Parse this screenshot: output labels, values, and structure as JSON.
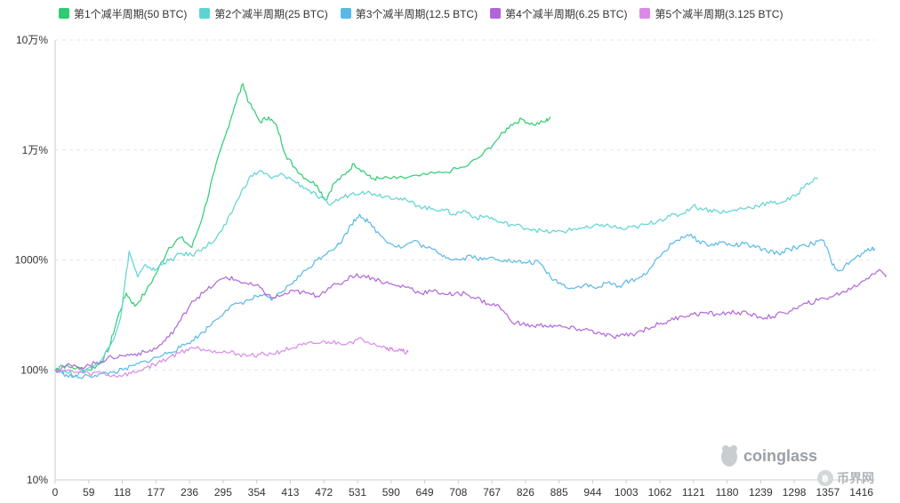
{
  "chart_data": {
    "type": "line",
    "y_scale": "log",
    "ylim": [
      10,
      100000
    ],
    "xlim": [
      0,
      1440
    ],
    "y_ticks": [
      {
        "value": 10,
        "label": "10%"
      },
      {
        "value": 100,
        "label": "100%"
      },
      {
        "value": 1000,
        "label": "1000%"
      },
      {
        "value": 10000,
        "label": "1万%"
      },
      {
        "value": 100000,
        "label": "10万%"
      }
    ],
    "x_ticks": [
      0,
      59,
      118,
      177,
      236,
      295,
      354,
      413,
      472,
      531,
      590,
      649,
      708,
      767,
      826,
      885,
      944,
      1003,
      1062,
      1121,
      1180,
      1239,
      1298,
      1357,
      1416
    ],
    "grid": true,
    "legend_position": "top",
    "series": [
      {
        "name": "第1个减半周期(50 BTC)",
        "color": "#2ecc71",
        "points": [
          [
            0,
            100
          ],
          [
            10,
            110
          ],
          [
            30,
            105
          ],
          [
            60,
            100
          ],
          [
            80,
            115
          ],
          [
            95,
            160
          ],
          [
            110,
            300
          ],
          [
            125,
            500
          ],
          [
            140,
            380
          ],
          [
            160,
            520
          ],
          [
            180,
            800
          ],
          [
            200,
            1300
          ],
          [
            220,
            1600
          ],
          [
            240,
            1300
          ],
          [
            260,
            2600
          ],
          [
            280,
            6500
          ],
          [
            300,
            14000
          ],
          [
            315,
            25000
          ],
          [
            330,
            40000
          ],
          [
            340,
            27000
          ],
          [
            360,
            18000
          ],
          [
            375,
            20000
          ],
          [
            390,
            16000
          ],
          [
            405,
            9000
          ],
          [
            420,
            7000
          ],
          [
            440,
            5500
          ],
          [
            460,
            4800
          ],
          [
            475,
            3500
          ],
          [
            490,
            5000
          ],
          [
            510,
            6000
          ],
          [
            525,
            7500
          ],
          [
            540,
            6500
          ],
          [
            555,
            5500
          ],
          [
            570,
            5500
          ],
          [
            600,
            5500
          ],
          [
            640,
            5800
          ],
          [
            680,
            6200
          ],
          [
            720,
            7000
          ],
          [
            750,
            9000
          ],
          [
            780,
            13000
          ],
          [
            800,
            17000
          ],
          [
            820,
            19000
          ],
          [
            840,
            17000
          ],
          [
            860,
            18000
          ],
          [
            870,
            20000
          ]
        ]
      },
      {
        "name": "第2个减半周期(25 BTC)",
        "color": "#5fd3d3",
        "points": [
          [
            0,
            100
          ],
          [
            20,
            95
          ],
          [
            40,
            90
          ],
          [
            60,
            105
          ],
          [
            80,
            120
          ],
          [
            100,
            180
          ],
          [
            115,
            300
          ],
          [
            130,
            1200
          ],
          [
            145,
            700
          ],
          [
            160,
            900
          ],
          [
            175,
            800
          ],
          [
            190,
            950
          ],
          [
            205,
            1000
          ],
          [
            220,
            1150
          ],
          [
            240,
            1100
          ],
          [
            260,
            1300
          ],
          [
            280,
            1500
          ],
          [
            300,
            2100
          ],
          [
            320,
            3500
          ],
          [
            340,
            5500
          ],
          [
            360,
            6500
          ],
          [
            380,
            5500
          ],
          [
            400,
            6000
          ],
          [
            420,
            5200
          ],
          [
            440,
            4500
          ],
          [
            460,
            3800
          ],
          [
            480,
            3200
          ],
          [
            500,
            3600
          ],
          [
            520,
            4000
          ],
          [
            540,
            4200
          ],
          [
            560,
            4000
          ],
          [
            580,
            3800
          ],
          [
            600,
            3700
          ],
          [
            620,
            3400
          ],
          [
            640,
            3100
          ],
          [
            660,
            2900
          ],
          [
            680,
            2900
          ],
          [
            700,
            2600
          ],
          [
            720,
            2800
          ],
          [
            740,
            2400
          ],
          [
            760,
            2500
          ],
          [
            780,
            2200
          ],
          [
            800,
            2100
          ],
          [
            820,
            2000
          ],
          [
            840,
            1900
          ],
          [
            860,
            1800
          ],
          [
            880,
            1800
          ],
          [
            900,
            1850
          ],
          [
            920,
            1950
          ],
          [
            940,
            1950
          ],
          [
            960,
            2100
          ],
          [
            980,
            2000
          ],
          [
            1000,
            1900
          ],
          [
            1020,
            2000
          ],
          [
            1040,
            2100
          ],
          [
            1060,
            2300
          ],
          [
            1080,
            2500
          ],
          [
            1100,
            2600
          ],
          [
            1120,
            3100
          ],
          [
            1140,
            2900
          ],
          [
            1160,
            2800
          ],
          [
            1180,
            2700
          ],
          [
            1200,
            2900
          ],
          [
            1220,
            3000
          ],
          [
            1240,
            3200
          ],
          [
            1260,
            3300
          ],
          [
            1280,
            3400
          ],
          [
            1300,
            3800
          ],
          [
            1320,
            5000
          ],
          [
            1340,
            5500
          ]
        ]
      },
      {
        "name": "第3个减半周期(12.5 BTC)",
        "color": "#5ab8e8",
        "points": [
          [
            0,
            100
          ],
          [
            20,
            90
          ],
          [
            40,
            85
          ],
          [
            60,
            88
          ],
          [
            80,
            92
          ],
          [
            100,
            95
          ],
          [
            120,
            100
          ],
          [
            140,
            110
          ],
          [
            160,
            120
          ],
          [
            180,
            130
          ],
          [
            200,
            145
          ],
          [
            220,
            160
          ],
          [
            240,
            185
          ],
          [
            260,
            220
          ],
          [
            280,
            280
          ],
          [
            300,
            350
          ],
          [
            320,
            400
          ],
          [
            340,
            430
          ],
          [
            360,
            480
          ],
          [
            380,
            430
          ],
          [
            400,
            520
          ],
          [
            420,
            650
          ],
          [
            440,
            800
          ],
          [
            460,
            1000
          ],
          [
            480,
            1200
          ],
          [
            500,
            1400
          ],
          [
            520,
            2100
          ],
          [
            535,
            2600
          ],
          [
            550,
            2200
          ],
          [
            570,
            1700
          ],
          [
            590,
            1400
          ],
          [
            610,
            1300
          ],
          [
            630,
            1500
          ],
          [
            650,
            1300
          ],
          [
            670,
            1200
          ],
          [
            690,
            1050
          ],
          [
            710,
            1000
          ],
          [
            730,
            1100
          ],
          [
            750,
            1000
          ],
          [
            770,
            1050
          ],
          [
            790,
            1000
          ],
          [
            810,
            950
          ],
          [
            830,
            950
          ],
          [
            850,
            950
          ],
          [
            870,
            700
          ],
          [
            890,
            600
          ],
          [
            910,
            550
          ],
          [
            930,
            600
          ],
          [
            950,
            550
          ],
          [
            970,
            620
          ],
          [
            990,
            580
          ],
          [
            1010,
            650
          ],
          [
            1030,
            700
          ],
          [
            1050,
            900
          ],
          [
            1070,
            1200
          ],
          [
            1090,
            1500
          ],
          [
            1110,
            1700
          ],
          [
            1130,
            1500
          ],
          [
            1150,
            1350
          ],
          [
            1170,
            1450
          ],
          [
            1190,
            1350
          ],
          [
            1210,
            1400
          ],
          [
            1230,
            1300
          ],
          [
            1250,
            1200
          ],
          [
            1270,
            1150
          ],
          [
            1290,
            1250
          ],
          [
            1310,
            1350
          ],
          [
            1330,
            1400
          ],
          [
            1350,
            1500
          ],
          [
            1365,
            900
          ],
          [
            1380,
            800
          ],
          [
            1400,
            1000
          ],
          [
            1420,
            1150
          ],
          [
            1435,
            1300
          ],
          [
            1440,
            1250
          ]
        ]
      },
      {
        "name": "第4个减半周期(6.25 BTC)",
        "color": "#b065d8",
        "points": [
          [
            0,
            100
          ],
          [
            20,
            110
          ],
          [
            40,
            105
          ],
          [
            60,
            110
          ],
          [
            80,
            120
          ],
          [
            100,
            130
          ],
          [
            120,
            135
          ],
          [
            140,
            140
          ],
          [
            160,
            145
          ],
          [
            180,
            160
          ],
          [
            200,
            200
          ],
          [
            220,
            280
          ],
          [
            240,
            420
          ],
          [
            260,
            500
          ],
          [
            280,
            600
          ],
          [
            300,
            700
          ],
          [
            320,
            650
          ],
          [
            340,
            600
          ],
          [
            360,
            560
          ],
          [
            380,
            450
          ],
          [
            400,
            480
          ],
          [
            420,
            520
          ],
          [
            440,
            500
          ],
          [
            460,
            470
          ],
          [
            480,
            560
          ],
          [
            500,
            600
          ],
          [
            520,
            720
          ],
          [
            540,
            720
          ],
          [
            560,
            680
          ],
          [
            580,
            620
          ],
          [
            600,
            580
          ],
          [
            620,
            570
          ],
          [
            640,
            500
          ],
          [
            660,
            520
          ],
          [
            680,
            500
          ],
          [
            700,
            480
          ],
          [
            720,
            500
          ],
          [
            740,
            450
          ],
          [
            760,
            400
          ],
          [
            780,
            380
          ],
          [
            800,
            280
          ],
          [
            820,
            260
          ],
          [
            840,
            250
          ],
          [
            860,
            255
          ],
          [
            880,
            250
          ],
          [
            900,
            240
          ],
          [
            920,
            235
          ],
          [
            940,
            230
          ],
          [
            960,
            210
          ],
          [
            980,
            200
          ],
          [
            1000,
            205
          ],
          [
            1020,
            215
          ],
          [
            1040,
            240
          ],
          [
            1060,
            260
          ],
          [
            1080,
            280
          ],
          [
            1100,
            310
          ],
          [
            1120,
            320
          ],
          [
            1140,
            330
          ],
          [
            1160,
            320
          ],
          [
            1180,
            330
          ],
          [
            1200,
            335
          ],
          [
            1220,
            320
          ],
          [
            1240,
            300
          ],
          [
            1260,
            305
          ],
          [
            1280,
            330
          ],
          [
            1300,
            360
          ],
          [
            1320,
            400
          ],
          [
            1340,
            430
          ],
          [
            1360,
            460
          ],
          [
            1380,
            500
          ],
          [
            1400,
            560
          ],
          [
            1420,
            650
          ],
          [
            1435,
            750
          ],
          [
            1450,
            800
          ],
          [
            1460,
            720
          ]
        ]
      },
      {
        "name": "第5个减半周期(3.125 BTC)",
        "color": "#d98ae8",
        "points": [
          [
            0,
            100
          ],
          [
            20,
            98
          ],
          [
            40,
            95
          ],
          [
            60,
            92
          ],
          [
            80,
            95
          ],
          [
            100,
            88
          ],
          [
            120,
            90
          ],
          [
            140,
            95
          ],
          [
            160,
            105
          ],
          [
            180,
            115
          ],
          [
            200,
            130
          ],
          [
            220,
            145
          ],
          [
            240,
            160
          ],
          [
            260,
            155
          ],
          [
            280,
            150
          ],
          [
            300,
            145
          ],
          [
            320,
            140
          ],
          [
            340,
            135
          ],
          [
            360,
            138
          ],
          [
            380,
            140
          ],
          [
            400,
            150
          ],
          [
            420,
            160
          ],
          [
            440,
            170
          ],
          [
            460,
            175
          ],
          [
            480,
            180
          ],
          [
            500,
            175
          ],
          [
            520,
            180
          ],
          [
            540,
            190
          ],
          [
            560,
            175
          ],
          [
            580,
            160
          ],
          [
            590,
            155
          ],
          [
            600,
            150
          ],
          [
            610,
            148
          ],
          [
            620,
            145
          ]
        ]
      }
    ],
    "watermarks": [
      "coinglass",
      "币界网"
    ]
  }
}
